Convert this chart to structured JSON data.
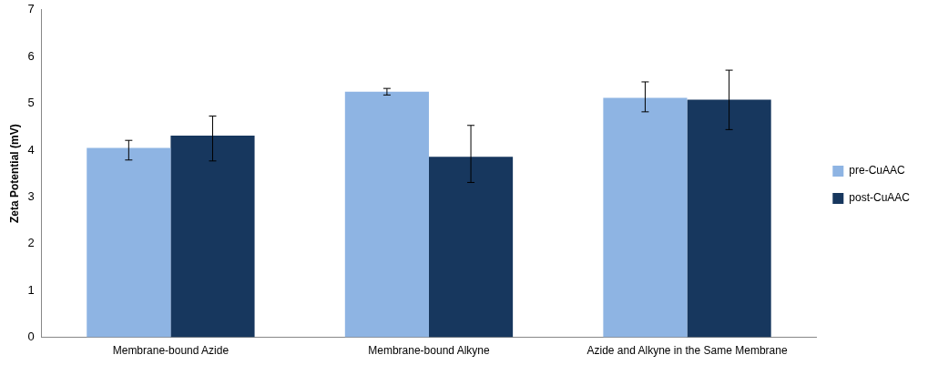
{
  "chart_data": {
    "type": "bar",
    "ylabel": "Zeta Potential (mV)",
    "categories": [
      "Membrane-bound Azide",
      "Membrane-bound Alkyne",
      "Azide and Alkyne in the Same Membrane"
    ],
    "series": [
      {
        "name": "pre-CuAAC",
        "color": "#8eb4e3",
        "values": [
          4.05,
          5.25,
          5.12
        ],
        "errors": [
          [
            3.79,
            4.21
          ],
          [
            5.18,
            5.32
          ],
          [
            4.82,
            5.46
          ]
        ]
      },
      {
        "name": "post-CuAAC",
        "color": "#17375e",
        "values": [
          4.31,
          3.86,
          5.08
        ],
        "errors": [
          [
            3.77,
            4.73
          ],
          [
            3.31,
            4.53
          ],
          [
            4.44,
            5.71
          ]
        ]
      }
    ],
    "ylim": [
      0,
      7
    ],
    "yticks": [
      0,
      1,
      2,
      3,
      4,
      5,
      6,
      7
    ],
    "grid": false,
    "legend": "right"
  }
}
